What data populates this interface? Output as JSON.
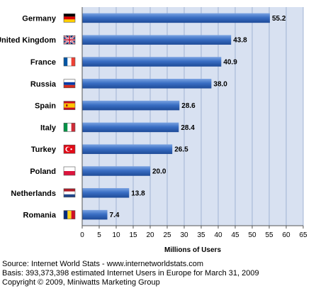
{
  "chart_data": {
    "type": "bar",
    "orientation": "horizontal",
    "categories": [
      "Germany",
      "United Kingdom",
      "France",
      "Russia",
      "Spain",
      "Italy",
      "Turkey",
      "Poland",
      "Netherlands",
      "Romania"
    ],
    "values": [
      55.2,
      43.8,
      40.9,
      38.0,
      28.6,
      28.4,
      26.5,
      20.0,
      13.8,
      7.4
    ],
    "value_labels": [
      "55.2",
      "43.8",
      "40.9",
      "38.0",
      "28.6",
      "28.4",
      "26.5",
      "20.0",
      "13.8",
      "7.4"
    ],
    "flags": [
      "germany-flag-icon",
      "uk-flag-icon",
      "france-flag-icon",
      "russia-flag-icon",
      "spain-flag-icon",
      "italy-flag-icon",
      "turkey-flag-icon",
      "poland-flag-icon",
      "netherlands-flag-icon",
      "romania-flag-icon"
    ],
    "xlabel": "Millions of Users",
    "ylabel": "",
    "title": "",
    "xlim": [
      0,
      65
    ],
    "xticks": [
      0,
      5,
      10,
      15,
      20,
      25,
      30,
      35,
      40,
      45,
      50,
      55,
      60,
      65
    ],
    "grid": true,
    "bar_color": "#3a6fc4",
    "plot_background": "#d8e1f1",
    "grid_color": "#9fb2d3"
  },
  "footer": {
    "source": "Source: Internet World Stats  -  www.internetworldstats.com",
    "basis": "Basis: 393,373,398 estimated Internet  Users in Europe for March 31, 2009",
    "copyright": "Copyright © 2009, Miniwatts Marketing Group"
  }
}
